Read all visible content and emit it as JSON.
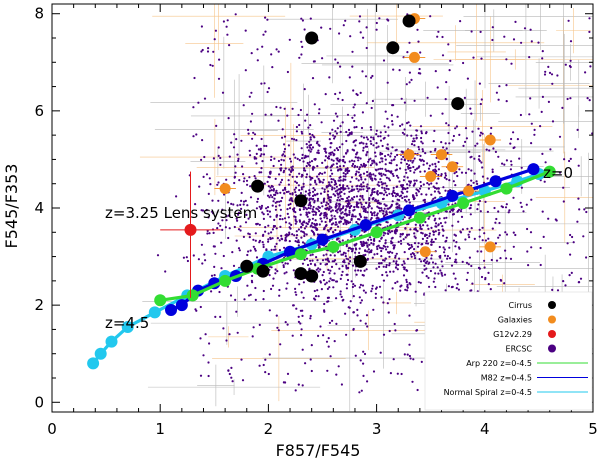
{
  "chart_data": {
    "type": "scatter",
    "title": "",
    "xlabel": "F857/F545",
    "ylabel": "F545/F353",
    "xlim": [
      0,
      5
    ],
    "ylim": [
      -0.2,
      8.2
    ],
    "xticks": [
      "0",
      "1",
      "2",
      "3",
      "4",
      "5"
    ],
    "yticks": [
      "0",
      "2",
      "4",
      "6",
      "8"
    ],
    "annotations": [
      {
        "text": "z=0",
        "x": 4.5,
        "y": 4.55
      },
      {
        "text": "z=3.25 Lens system",
        "x": 0.5,
        "y": 3.9
      },
      {
        "text": "z=4.5",
        "x": 0.5,
        "y": 1.6
      }
    ],
    "legend_position": "bottom-right",
    "legend": [
      {
        "label": "Cirrus",
        "color": "#000000",
        "kind": "dot"
      },
      {
        "label": "Galaxies",
        "color": "#f28c1e",
        "kind": "dot"
      },
      {
        "label": "G12v2.29",
        "color": "#e41a1c",
        "kind": "dot"
      },
      {
        "label": "ERCSC",
        "color": "#4b0082",
        "kind": "dot"
      },
      {
        "label": "Arp 220 z=0-4.5",
        "color": "#33dd33",
        "kind": "line"
      },
      {
        "label": "M82 z=0-4.5",
        "color": "#0000dd",
        "kind": "line"
      },
      {
        "label": "Normal Spiral z=0-4.5",
        "color": "#22c8ee",
        "kind": "line"
      }
    ],
    "ercsc_cloud": {
      "color": "#4b0082",
      "n_points": 3000,
      "center": [
        2.8,
        3.95
      ],
      "spread": [
        0.6,
        0.9
      ]
    },
    "cirrus": {
      "color": "#000000",
      "x": [
        2.4,
        3.3,
        3.15,
        3.75,
        1.9,
        2.3,
        2.4,
        1.8,
        1.95,
        2.3,
        2.85
      ],
      "y": [
        7.5,
        7.85,
        7.3,
        6.15,
        4.45,
        4.15,
        2.6,
        2.8,
        2.7,
        2.65,
        2.9
      ]
    },
    "galaxies": {
      "color": "#f28c1e",
      "x": [
        3.35,
        3.35,
        3.3,
        4.05,
        3.6,
        3.7,
        3.5,
        1.6,
        3.85,
        4.05,
        3.45,
        3.6
      ],
      "y": [
        7.9,
        7.1,
        5.1,
        5.4,
        5.1,
        4.85,
        4.65,
        4.4,
        4.35,
        3.2,
        3.1,
        2.15
      ]
    },
    "g12v229": {
      "color": "#e41a1c",
      "x": 1.28,
      "y": 3.55
    },
    "series": [
      {
        "name": "Normal Spiral z=0-4.5",
        "color": "#22c8ee",
        "x": [
          4.5,
          4.3,
          4.0,
          3.6,
          3.2,
          2.8,
          2.4,
          2.0,
          1.6,
          1.25,
          0.95,
          0.7,
          0.55,
          0.45,
          0.38
        ],
        "y": [
          4.7,
          4.55,
          4.35,
          4.1,
          3.85,
          3.55,
          3.25,
          3.0,
          2.6,
          2.2,
          1.85,
          1.55,
          1.25,
          1.0,
          0.8
        ]
      },
      {
        "name": "M82 z=0-4.5",
        "color": "#0000dd",
        "x": [
          4.45,
          4.1,
          3.7,
          3.3,
          2.9,
          2.5,
          2.2,
          1.95,
          1.7,
          1.5,
          1.35,
          1.2,
          1.1
        ],
        "y": [
          4.8,
          4.55,
          4.25,
          3.95,
          3.65,
          3.35,
          3.1,
          2.85,
          2.6,
          2.45,
          2.3,
          2.0,
          1.9
        ]
      },
      {
        "name": "Arp 220 z=0-4.5",
        "color": "#33dd33",
        "x": [
          4.6,
          4.2,
          3.8,
          3.4,
          3.0,
          2.6,
          2.3,
          1.9,
          1.6,
          1.3,
          1.0
        ],
        "y": [
          4.75,
          4.4,
          4.1,
          3.8,
          3.5,
          3.2,
          3.05,
          2.75,
          2.5,
          2.2,
          2.1
        ]
      }
    ]
  }
}
